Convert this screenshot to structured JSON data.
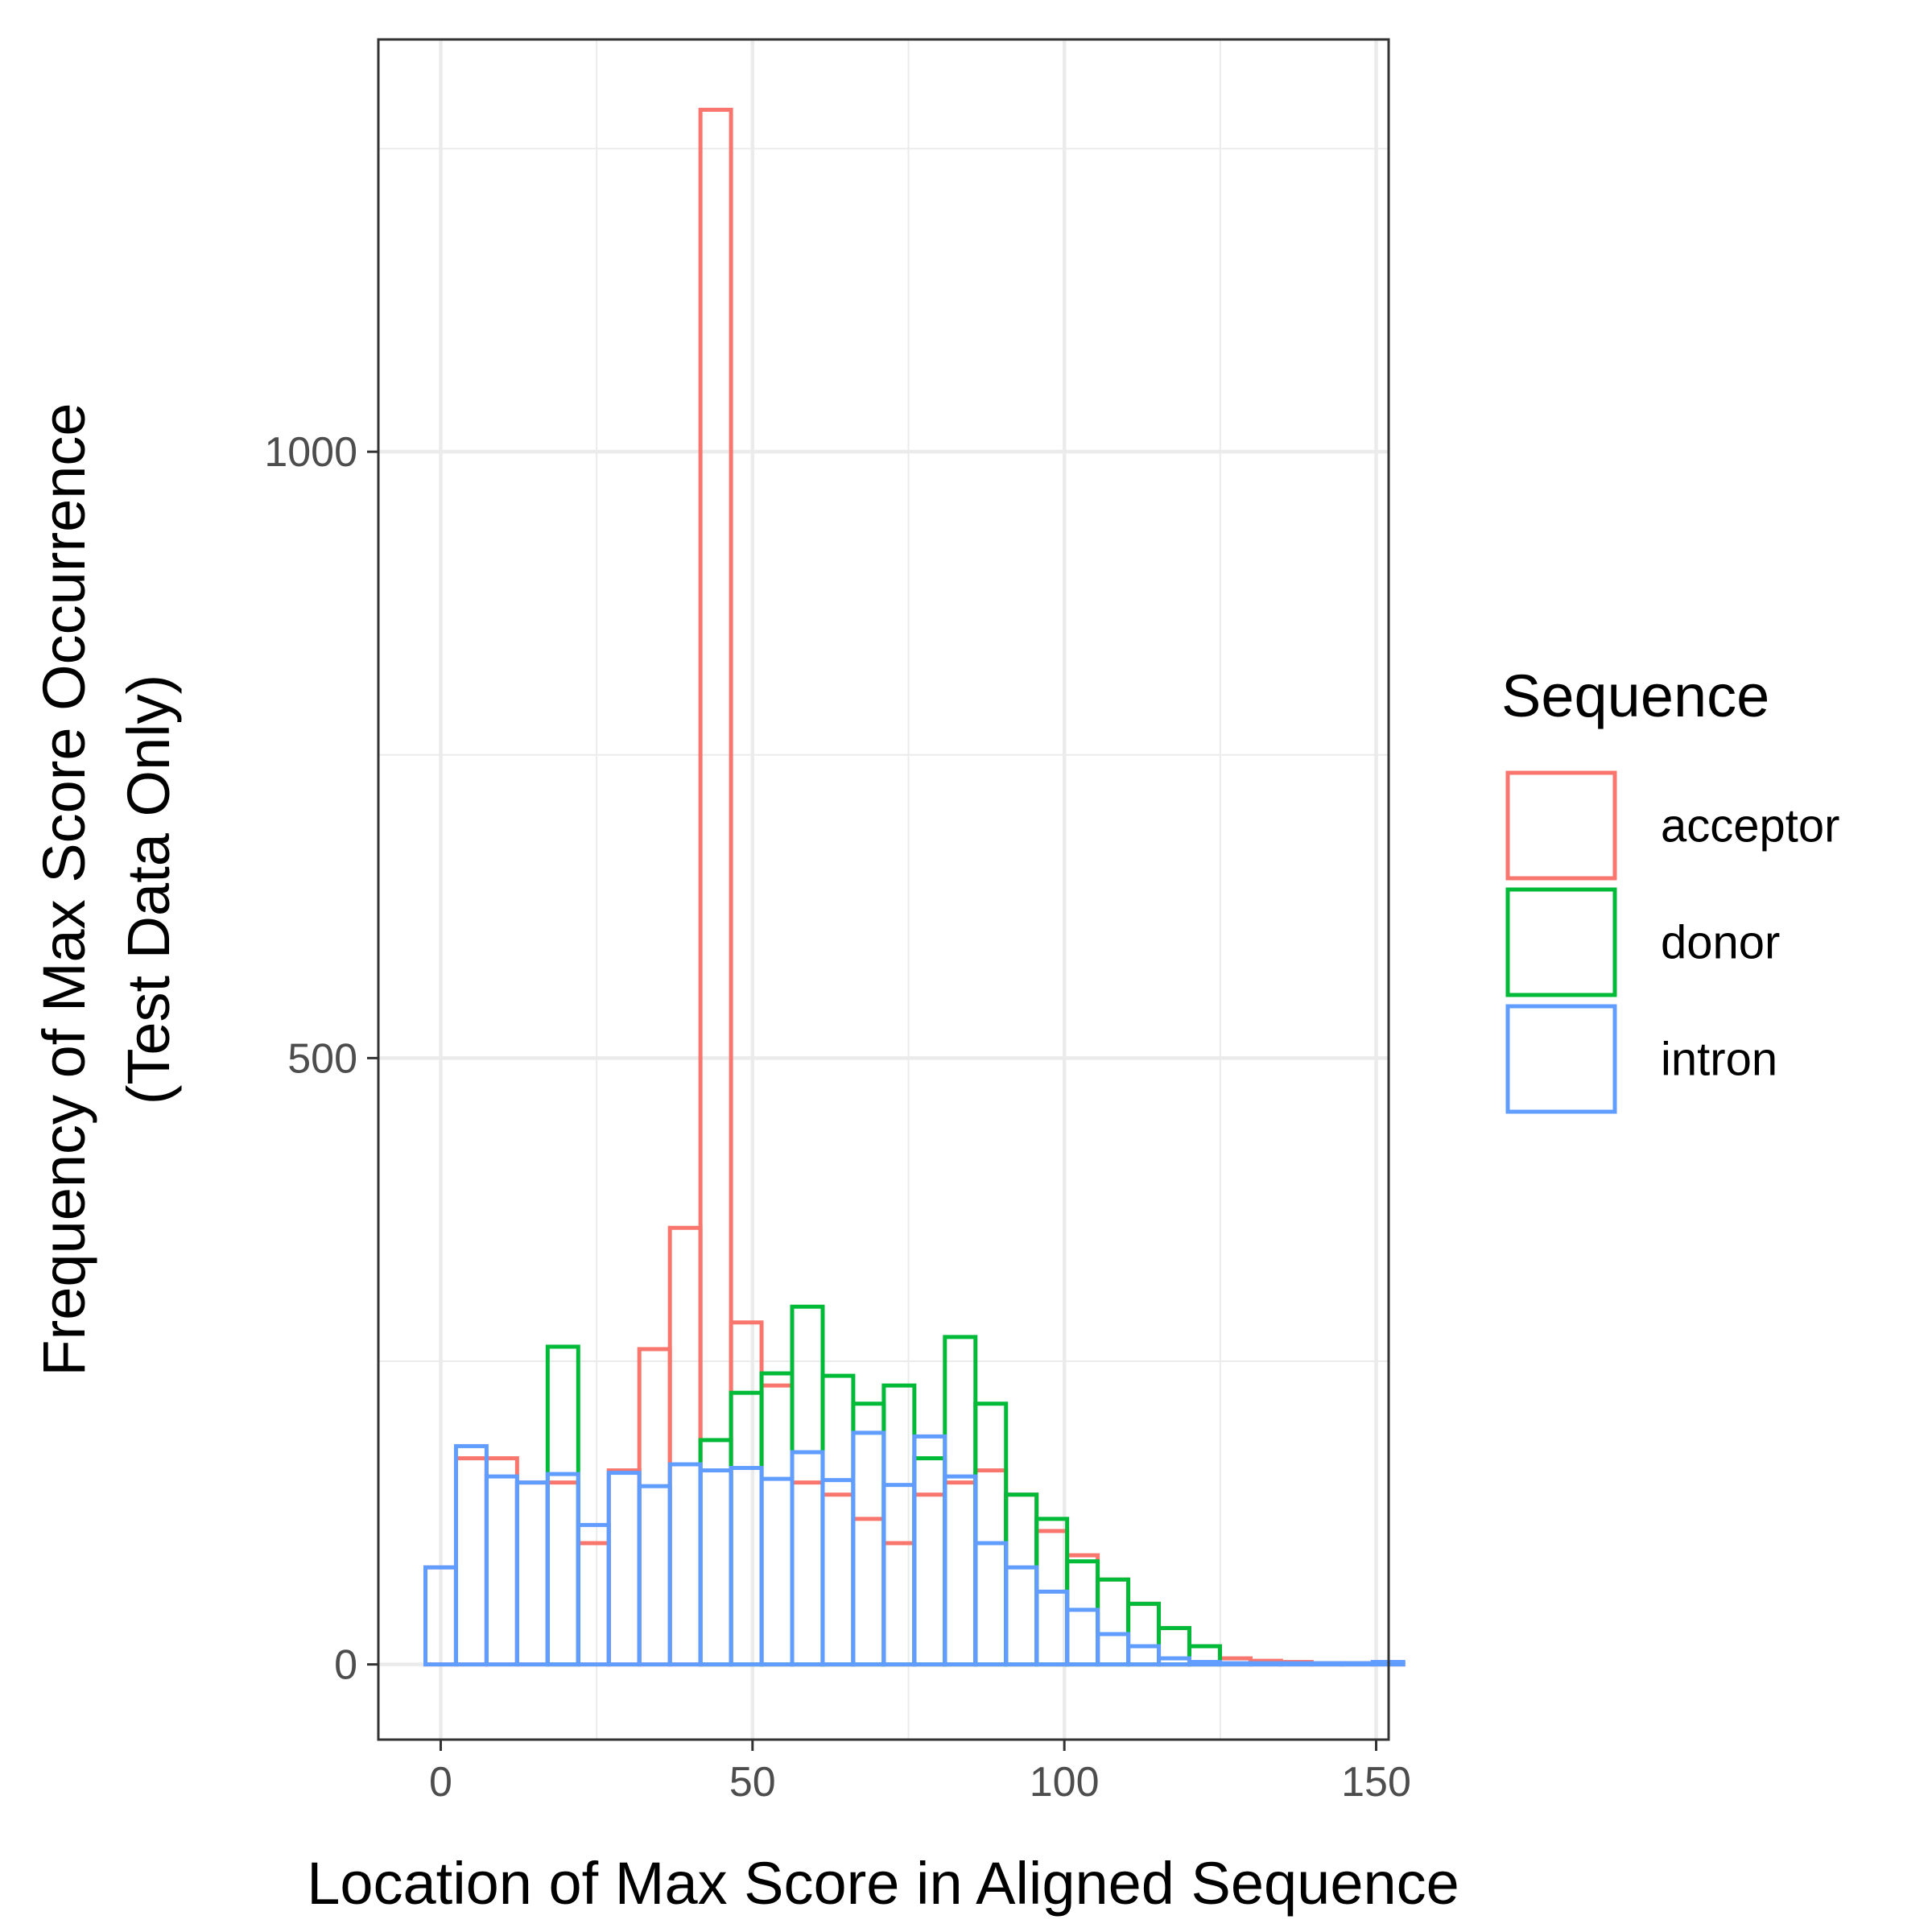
{
  "chart_data": {
    "type": "bar",
    "subtype": "histogram",
    "bar_style": "outline",
    "xlabel": "Location of Max Score in Aligned Sequence",
    "ylabel_lines": [
      "Frequency of Max Score Occurrence",
      "(Test Data Only)"
    ],
    "xlim": [
      -10,
      152
    ],
    "ylim": [
      -62,
      1340
    ],
    "x_ticks": [
      0,
      50,
      100,
      150
    ],
    "y_ticks": [
      0,
      500,
      1000
    ],
    "x_tick_labels": [
      "0",
      "50",
      "100",
      "150"
    ],
    "y_tick_labels": [
      "0",
      "500",
      "1000"
    ],
    "bin_width": 4.9,
    "bin_start": -2.45,
    "grid": true,
    "legend": {
      "title": "Sequence",
      "position": "right"
    },
    "series": [
      {
        "name": "acceptor",
        "color": "#F8766D",
        "values": [
          80,
          170,
          170,
          150,
          150,
          100,
          160,
          260,
          360,
          1282,
          282,
          230,
          150,
          140,
          120,
          100,
          140,
          150,
          160,
          140,
          110,
          90,
          70,
          50,
          30,
          15,
          5,
          3,
          2,
          1,
          1,
          1
        ]
      },
      {
        "name": "donor",
        "color": "#00BA38",
        "values": [
          0,
          0,
          0,
          0,
          262,
          0,
          0,
          0,
          0,
          185,
          224,
          240,
          295,
          238,
          215,
          230,
          170,
          270,
          215,
          140,
          120,
          85,
          70,
          50,
          30,
          15,
          0,
          0,
          0,
          0,
          0,
          0
        ]
      },
      {
        "name": "intron",
        "color": "#619CFF",
        "values": [
          80,
          180,
          155,
          150,
          157,
          115,
          158,
          147,
          165,
          160,
          162,
          153,
          175,
          152,
          191,
          148,
          188,
          155,
          100,
          80,
          60,
          45,
          25,
          15,
          5,
          2,
          1,
          1,
          1,
          1,
          1,
          2
        ]
      }
    ]
  }
}
